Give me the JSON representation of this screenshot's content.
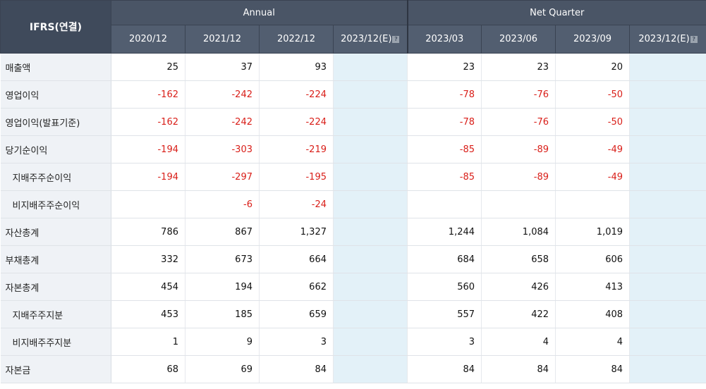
{
  "header": {
    "corner": "IFRS(연결)",
    "group_annual": "Annual",
    "group_quarter": "Net Quarter",
    "info_icon_glyph": "?",
    "annual_periods": [
      "2020/12",
      "2021/12",
      "2022/12",
      "2023/12(E)"
    ],
    "quarter_periods": [
      "2023/03",
      "2023/06",
      "2023/09",
      "2023/12(E)"
    ]
  },
  "rows": [
    {
      "label": "매출액",
      "indent": false,
      "annual": [
        "25",
        "37",
        "93",
        ""
      ],
      "quarter": [
        "23",
        "23",
        "20",
        ""
      ]
    },
    {
      "label": "영업이익",
      "indent": false,
      "annual": [
        "-162",
        "-242",
        "-224",
        ""
      ],
      "quarter": [
        "-78",
        "-76",
        "-50",
        ""
      ]
    },
    {
      "label": "영업이익(발표기준)",
      "indent": false,
      "annual": [
        "-162",
        "-242",
        "-224",
        ""
      ],
      "quarter": [
        "-78",
        "-76",
        "-50",
        ""
      ]
    },
    {
      "label": "당기순이익",
      "indent": false,
      "annual": [
        "-194",
        "-303",
        "-219",
        ""
      ],
      "quarter": [
        "-85",
        "-89",
        "-49",
        ""
      ]
    },
    {
      "label": "지배주주순이익",
      "indent": true,
      "annual": [
        "-194",
        "-297",
        "-195",
        ""
      ],
      "quarter": [
        "-85",
        "-89",
        "-49",
        ""
      ]
    },
    {
      "label": "비지배주주순이익",
      "indent": true,
      "annual": [
        "",
        "-6",
        "-24",
        ""
      ],
      "quarter": [
        "",
        "",
        "",
        ""
      ]
    },
    {
      "label": "자산총계",
      "indent": false,
      "annual": [
        "786",
        "867",
        "1,327",
        ""
      ],
      "quarter": [
        "1,244",
        "1,084",
        "1,019",
        ""
      ]
    },
    {
      "label": "부채총계",
      "indent": false,
      "annual": [
        "332",
        "673",
        "664",
        ""
      ],
      "quarter": [
        "684",
        "658",
        "606",
        ""
      ]
    },
    {
      "label": "자본총계",
      "indent": false,
      "annual": [
        "454",
        "194",
        "662",
        ""
      ],
      "quarter": [
        "560",
        "426",
        "413",
        ""
      ]
    },
    {
      "label": "지배주주지분",
      "indent": true,
      "annual": [
        "453",
        "185",
        "659",
        ""
      ],
      "quarter": [
        "557",
        "422",
        "408",
        ""
      ]
    },
    {
      "label": "비지배주주지분",
      "indent": true,
      "annual": [
        "1",
        "9",
        "3",
        ""
      ],
      "quarter": [
        "3",
        "4",
        "4",
        ""
      ]
    },
    {
      "label": "자본금",
      "indent": false,
      "annual": [
        "68",
        "69",
        "84",
        ""
      ],
      "quarter": [
        "84",
        "84",
        "84",
        ""
      ]
    }
  ],
  "colors": {
    "header_bg": "#4a5566",
    "label_bg": "#eff2f6",
    "estimate_bg": "#e3f1f8",
    "negative": "#d91e18"
  }
}
